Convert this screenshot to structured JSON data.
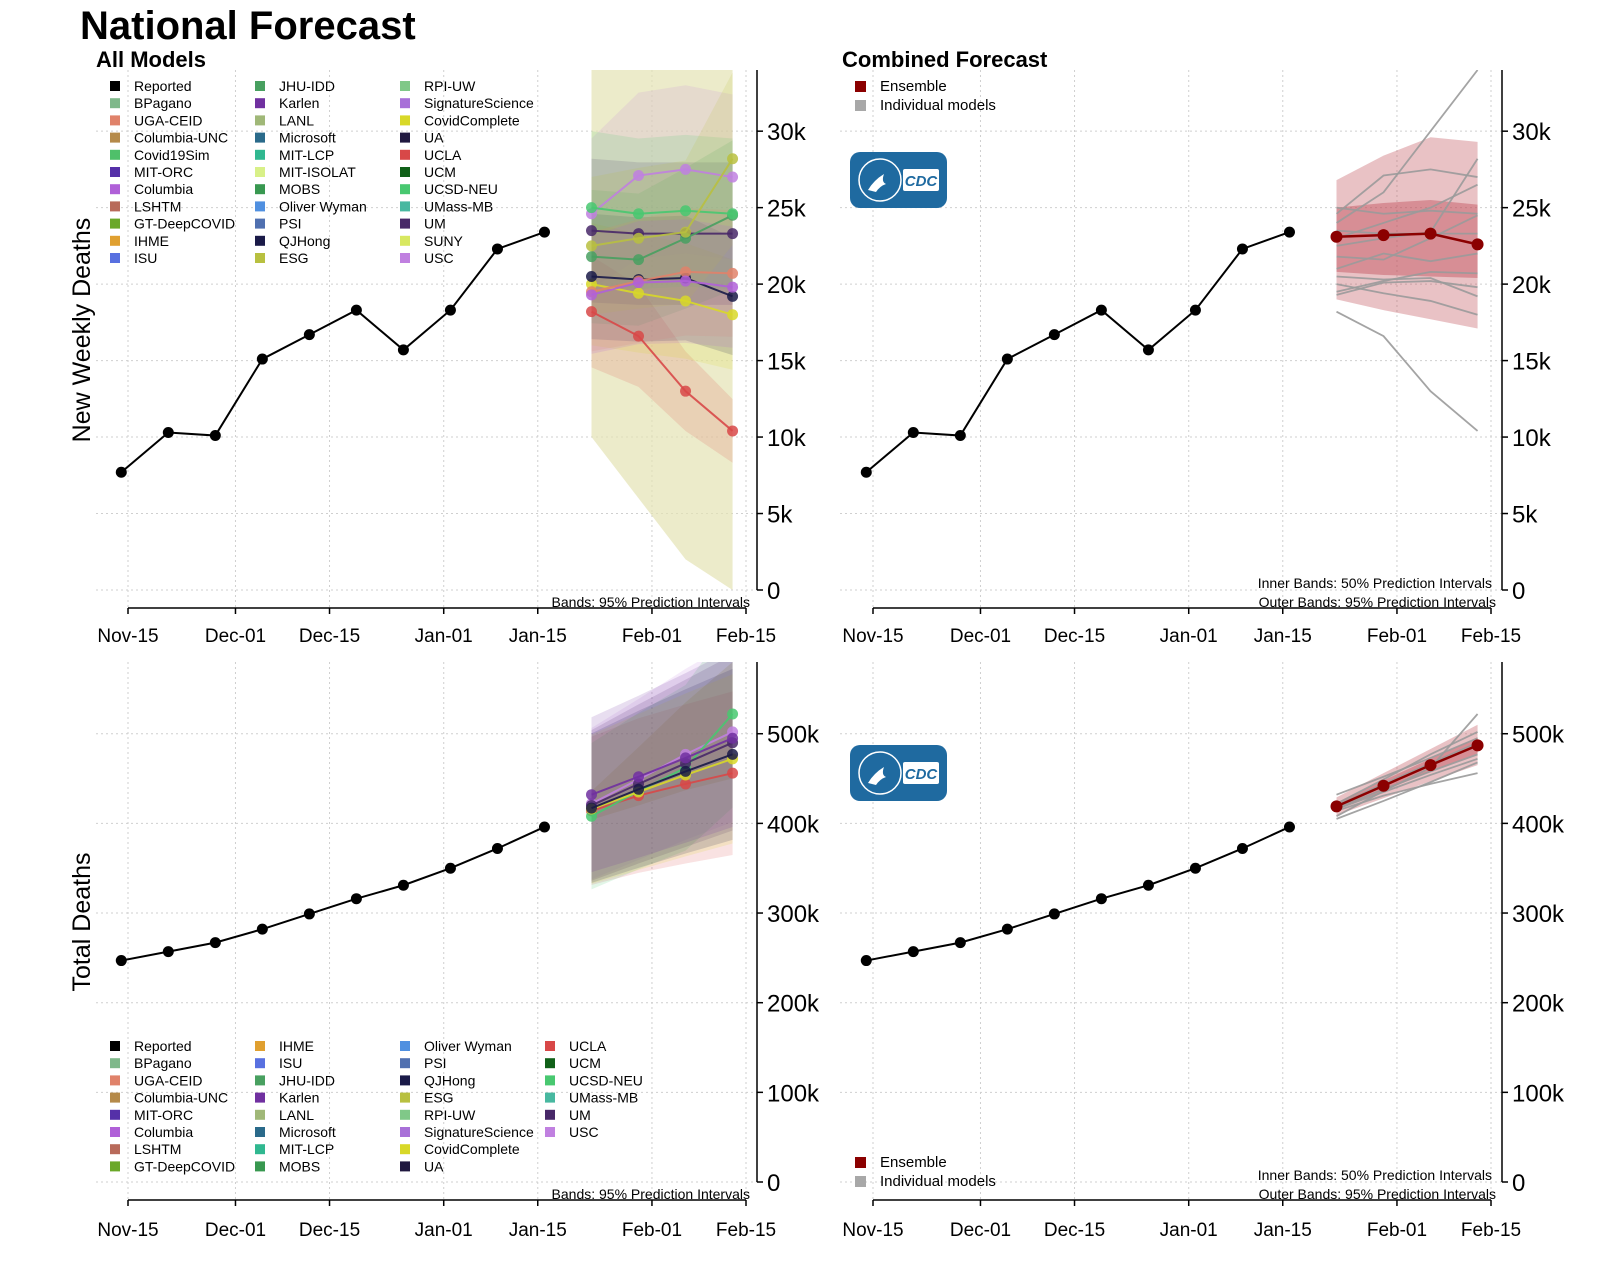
{
  "page": {
    "title": "National Forecast"
  },
  "colors": {
    "reported": "#000000",
    "ensemble": "#8b0000",
    "ensemble_band": "#c0505a",
    "individual": "#9a9a9a",
    "grid": "#cfcfcf",
    "cdc_logo": "#1f6aa0"
  },
  "models": [
    {
      "name": "Reported",
      "color": "#000000"
    },
    {
      "name": "BPagano",
      "color": "#7fb88a"
    },
    {
      "name": "UGA-CEID",
      "color": "#e0826a"
    },
    {
      "name": "Columbia-UNC",
      "color": "#b58a4a"
    },
    {
      "name": "Covid19Sim",
      "color": "#4fc06a"
    },
    {
      "name": "MIT-ORC",
      "color": "#5530a8"
    },
    {
      "name": "Columbia",
      "color": "#b060d8"
    },
    {
      "name": "LSHTM",
      "color": "#b86a5a"
    },
    {
      "name": "GT-DeepCOVID",
      "color": "#6aa828"
    },
    {
      "name": "IHME",
      "color": "#e0a030"
    },
    {
      "name": "ISU",
      "color": "#5870e0"
    },
    {
      "name": "JHU-IDD",
      "color": "#48a060"
    },
    {
      "name": "Karlen",
      "color": "#7030a0"
    },
    {
      "name": "LANL",
      "color": "#a0b878"
    },
    {
      "name": "Microsoft",
      "color": "#2a6a8a"
    },
    {
      "name": "MIT-LCP",
      "color": "#30b890"
    },
    {
      "name": "MIT-ISOLAT",
      "color": "#d8f088"
    },
    {
      "name": "MOBS",
      "color": "#389850"
    },
    {
      "name": "Oliver Wyman",
      "color": "#5090e0"
    },
    {
      "name": "PSI",
      "color": "#5070b0"
    },
    {
      "name": "QJHong",
      "color": "#1a1a48"
    },
    {
      "name": "ESG",
      "color": "#b8c040"
    },
    {
      "name": "RPI-UW",
      "color": "#80c888"
    },
    {
      "name": "SignatureScience",
      "color": "#a870d8"
    },
    {
      "name": "CovidComplete",
      "color": "#d8d828"
    },
    {
      "name": "UA",
      "color": "#201840"
    },
    {
      "name": "UCLA",
      "color": "#d84848"
    },
    {
      "name": "UCM",
      "color": "#106018"
    },
    {
      "name": "UCSD-NEU",
      "color": "#48c870"
    },
    {
      "name": "UMass-MB",
      "color": "#48b8a0"
    },
    {
      "name": "UM",
      "color": "#482868"
    },
    {
      "name": "SUNY",
      "color": "#d8e860"
    },
    {
      "name": "USC",
      "color": "#c080e0"
    }
  ],
  "legend_bottom": [
    "Reported",
    "BPagano",
    "UGA-CEID",
    "Columbia-UNC",
    "MIT-ORC",
    "Columbia",
    "LSHTM",
    "GT-DeepCOVID",
    "IHME",
    "ISU",
    "JHU-IDD",
    "Karlen",
    "LANL",
    "Microsoft",
    "MIT-LCP",
    "MOBS",
    "Oliver Wyman",
    "PSI",
    "QJHong",
    "ESG",
    "RPI-UW",
    "SignatureScience",
    "CovidComplete",
    "UA",
    "UCLA",
    "UCM",
    "UCSD-NEU",
    "UMass-MB",
    "UM",
    "USC"
  ],
  "combined_legend": [
    {
      "name": "Ensemble",
      "color": "#8b0000"
    },
    {
      "name": "Individual models",
      "color": "#a8a8a8"
    }
  ],
  "logo": {
    "text": "CDC"
  },
  "chart_data": [
    {
      "id": "weekly-all",
      "type": "line",
      "title": "All Models",
      "ylabel": "New Weekly Deaths",
      "xlabel": "",
      "x_ticks": [
        "Nov-15",
        "Dec-01",
        "Dec-15",
        "Jan-01",
        "Jan-15",
        "Feb-01",
        "Feb-15"
      ],
      "y_ticks": [
        "0",
        "5k",
        "10k",
        "15k",
        "20k",
        "25k",
        "30k"
      ],
      "ylim": [
        0,
        34000
      ],
      "note": "Bands: 95% Prediction Intervals",
      "reported": {
        "x": [
          "2020-11-14",
          "2020-11-21",
          "2020-11-28",
          "2020-12-05",
          "2020-12-12",
          "2020-12-19",
          "2020-12-26",
          "2021-01-02",
          "2021-01-09",
          "2021-01-16"
        ],
        "y": [
          7700,
          10300,
          10100,
          15100,
          16700,
          18300,
          15700,
          18300,
          22300,
          23400
        ]
      },
      "forecast_x": [
        "2021-01-23",
        "2021-01-30",
        "2021-02-06",
        "2021-02-13"
      ],
      "forecasts": [
        {
          "model": "UCLA",
          "y": [
            18200,
            16600,
            13000,
            10400
          ]
        },
        {
          "model": "USC",
          "y": [
            24600,
            27100,
            27500,
            27000
          ]
        },
        {
          "model": "CovidComplete",
          "y": [
            20000,
            19400,
            18900,
            18000
          ]
        },
        {
          "model": "UM",
          "y": [
            23500,
            23300,
            23300,
            23300
          ]
        },
        {
          "model": "QJHong",
          "y": [
            20500,
            20300,
            20400,
            19200
          ]
        },
        {
          "model": "JHU-IDD",
          "y": [
            21800,
            21600,
            23000,
            24500
          ]
        },
        {
          "model": "UCSD-NEU",
          "y": [
            25000,
            24600,
            24800,
            24600
          ]
        },
        {
          "model": "UGA-CEID",
          "y": [
            19500,
            20200,
            20800,
            20700
          ]
        },
        {
          "model": "ESG",
          "y": [
            22500,
            23000,
            23400,
            28200
          ]
        },
        {
          "model": "Columbia",
          "y": [
            19300,
            20100,
            20200,
            19800
          ]
        }
      ],
      "band_95": {
        "lower": [
          10000,
          6000,
          2000,
          0
        ],
        "upper": [
          34000,
          34000,
          34000,
          34000
        ]
      }
    },
    {
      "id": "weekly-combined",
      "type": "line",
      "title": "Combined Forecast",
      "ylabel": "",
      "xlabel": "",
      "x_ticks": [
        "Nov-15",
        "Dec-01",
        "Dec-15",
        "Jan-01",
        "Jan-15",
        "Feb-01",
        "Feb-15"
      ],
      "y_ticks": [
        "0",
        "5k",
        "10k",
        "15k",
        "20k",
        "25k",
        "30k"
      ],
      "ylim": [
        0,
        34000
      ],
      "note_inner": "Inner Bands: 50% Prediction Intervals",
      "note_outer": "Outer Bands: 95% Prediction Intervals",
      "reported": {
        "x": [
          "2020-11-14",
          "2020-11-21",
          "2020-11-28",
          "2020-12-05",
          "2020-12-12",
          "2020-12-19",
          "2020-12-26",
          "2021-01-02",
          "2021-01-09",
          "2021-01-16"
        ],
        "y": [
          7700,
          10300,
          10100,
          15100,
          16700,
          18300,
          15700,
          18300,
          22300,
          23400
        ]
      },
      "ensemble": {
        "x": [
          "2021-01-23",
          "2021-01-30",
          "2021-02-06",
          "2021-02-13"
        ],
        "y": [
          23100,
          23200,
          23300,
          22600
        ],
        "band50": {
          "lower": [
            20800,
            20600,
            20500,
            20400
          ],
          "upper": [
            25000,
            25300,
            25500,
            25200
          ]
        },
        "band95": {
          "lower": [
            19000,
            18300,
            17700,
            17100
          ],
          "upper": [
            26800,
            28400,
            29600,
            29300
          ]
        }
      },
      "individual": [
        [
          18200,
          16600,
          13000,
          10400
        ],
        [
          24600,
          27100,
          27500,
          27000
        ],
        [
          20000,
          19400,
          18900,
          18000
        ],
        [
          23500,
          23300,
          23300,
          23300
        ],
        [
          20500,
          20300,
          20400,
          19200
        ],
        [
          21800,
          21600,
          23000,
          24500
        ],
        [
          25000,
          24600,
          24800,
          24600
        ],
        [
          19500,
          20200,
          20800,
          20700
        ],
        [
          22500,
          23000,
          23400,
          28200
        ],
        [
          24000,
          26000,
          30000,
          34000
        ],
        [
          19300,
          20100,
          20200,
          19800
        ],
        [
          21000,
          22000,
          21500,
          22000
        ],
        [
          23000,
          24000,
          25000,
          26500
        ]
      ]
    },
    {
      "id": "total-all",
      "type": "line",
      "title": "",
      "ylabel": "Total Deaths",
      "xlabel": "",
      "x_ticks": [
        "Nov-15",
        "Dec-01",
        "Dec-15",
        "Jan-01",
        "Jan-15",
        "Feb-01",
        "Feb-15"
      ],
      "y_ticks": [
        "0",
        "100k",
        "200k",
        "300k",
        "400k",
        "500k"
      ],
      "ylim": [
        0,
        580000
      ],
      "note": "Bands: 95% Prediction Intervals",
      "reported": {
        "x": [
          "2020-11-14",
          "2020-11-21",
          "2020-11-28",
          "2020-12-05",
          "2020-12-12",
          "2020-12-19",
          "2020-12-26",
          "2021-01-02",
          "2021-01-09",
          "2021-01-16"
        ],
        "y": [
          247000,
          257000,
          267000,
          282000,
          299000,
          316000,
          331000,
          350000,
          372000,
          396000
        ]
      },
      "forecast_x": [
        "2021-01-23",
        "2021-01-30",
        "2021-02-06",
        "2021-02-13"
      ],
      "forecasts": [
        {
          "model": "UCLA",
          "y": [
            414000,
            431000,
            444000,
            456000
          ]
        },
        {
          "model": "USC",
          "y": [
            422000,
            449000,
            477000,
            502000
          ]
        },
        {
          "model": "UCSD-NEU",
          "y": [
            408000,
            436000,
            462000,
            522000
          ]
        },
        {
          "model": "UM",
          "y": [
            420000,
            444000,
            467000,
            490000
          ]
        },
        {
          "model": "CovidComplete",
          "y": [
            416000,
            435000,
            454000,
            472000
          ]
        },
        {
          "model": "QJHong",
          "y": [
            417000,
            438000,
            458000,
            477000
          ]
        },
        {
          "model": "Karlen",
          "y": [
            432000,
            452000,
            473000,
            495000
          ]
        }
      ],
      "band_95": {
        "lower": [
          404000,
          420000,
          437000,
          450000
        ],
        "upper": [
          436000,
          485000,
          535000,
          580000
        ]
      }
    },
    {
      "id": "total-combined",
      "type": "line",
      "title": "",
      "ylabel": "",
      "xlabel": "",
      "x_ticks": [
        "Nov-15",
        "Dec-01",
        "Dec-15",
        "Jan-01",
        "Jan-15",
        "Feb-01",
        "Feb-15"
      ],
      "y_ticks": [
        "0",
        "100k",
        "200k",
        "300k",
        "400k",
        "500k"
      ],
      "ylim": [
        0,
        580000
      ],
      "note_inner": "Inner Bands: 50% Prediction Intervals",
      "note_outer": "Outer Bands: 95% Prediction Intervals",
      "reported": {
        "x": [
          "2020-11-14",
          "2020-11-21",
          "2020-11-28",
          "2020-12-05",
          "2020-12-12",
          "2020-12-19",
          "2020-12-26",
          "2021-01-02",
          "2021-01-09",
          "2021-01-16"
        ],
        "y": [
          247000,
          257000,
          267000,
          282000,
          299000,
          316000,
          331000,
          350000,
          372000,
          396000
        ]
      },
      "ensemble": {
        "x": [
          "2021-01-23",
          "2021-01-30",
          "2021-02-06",
          "2021-02-13"
        ],
        "y": [
          419000,
          442000,
          465000,
          487000
        ],
        "band50": {
          "lower": [
            415000,
            436000,
            458000,
            478000
          ],
          "upper": [
            423000,
            448000,
            472000,
            496000
          ]
        },
        "band95": {
          "lower": [
            409000,
            428000,
            447000,
            465000
          ],
          "upper": [
            429000,
            456000,
            483000,
            510000
          ]
        }
      },
      "individual": [
        [
          414000,
          431000,
          444000,
          456000
        ],
        [
          422000,
          449000,
          477000,
          502000
        ],
        [
          408000,
          436000,
          462000,
          522000
        ],
        [
          420000,
          444000,
          467000,
          490000
        ],
        [
          416000,
          435000,
          454000,
          472000
        ],
        [
          417000,
          438000,
          458000,
          477000
        ],
        [
          432000,
          452000,
          473000,
          495000
        ],
        [
          405000,
          425000,
          446000,
          468000
        ]
      ]
    }
  ]
}
